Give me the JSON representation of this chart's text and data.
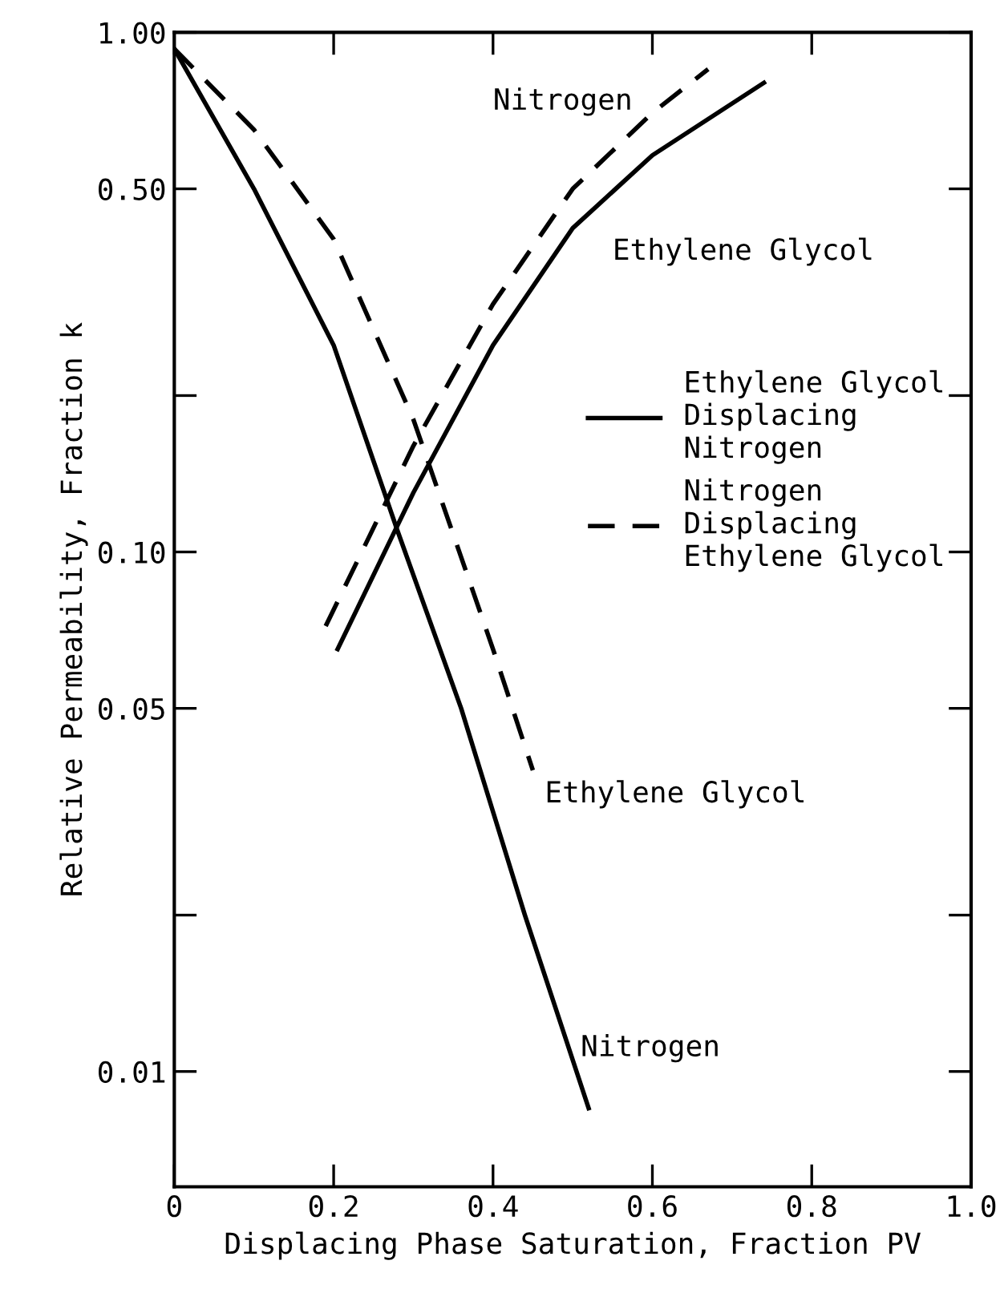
{
  "chart_data": {
    "type": "line",
    "xlabel": "Displacing Phase Saturation, Fraction PV",
    "ylabel": "Relative Permeability, Fraction k",
    "log": "y",
    "xlim": [
      0,
      1.0
    ],
    "xticks": [
      0,
      0.2,
      0.4,
      0.6,
      0.8,
      {
        "value": 1.0,
        "label": "1.0"
      }
    ],
    "ylim": [
      0.006,
      1.0
    ],
    "yticks": [
      {
        "value": 1.0,
        "label": "1.00"
      },
      {
        "value": 0.5,
        "label": "0.50"
      },
      {
        "value": 0.2,
        "label": null
      },
      {
        "value": 0.1,
        "label": "0.10"
      },
      {
        "value": 0.05,
        "label": "0.05"
      },
      {
        "value": 0.02,
        "label": null
      },
      {
        "value": 0.01,
        "label": "0.01"
      }
    ],
    "grid": false,
    "legend": "right",
    "marker": "none",
    "series": [
      {
        "name": "Ethylene Glycol Displacing Nitrogen",
        "color": "#000000",
        "line_style": "solid",
        "x": [
          0,
          0.1,
          0.2,
          0.28,
          0.36,
          0.44,
          0.52
        ],
        "values": [
          0.93,
          0.5,
          0.25,
          0.11,
          0.05,
          0.02,
          0.0085
        ]
      },
      {
        "color": "#000000",
        "line_style": "solid",
        "x": [
          0.205,
          0.3,
          0.4,
          0.5,
          0.6,
          0.74
        ],
        "values": [
          0.065,
          0.13,
          0.25,
          0.42,
          0.58,
          0.8
        ]
      },
      {
        "name": "Nitrogen Displacing Ethylene Glycol",
        "color": "#000000",
        "line_style": "dashed",
        "x": [
          0,
          0.1,
          0.2,
          0.3,
          0.4,
          0.45
        ],
        "values": [
          0.93,
          0.65,
          0.4,
          0.18,
          0.065,
          0.038
        ]
      },
      {
        "color": "#000000",
        "line_style": "dashed",
        "x": [
          0.19,
          0.3,
          0.4,
          0.5,
          0.6,
          0.67
        ],
        "values": [
          0.072,
          0.16,
          0.3,
          0.5,
          0.7,
          0.85
        ]
      }
    ],
    "annotations": [
      "Nitrogen",
      "Ethylene Glycol",
      "Ethylene Glycol",
      "Nitrogen"
    ]
  }
}
